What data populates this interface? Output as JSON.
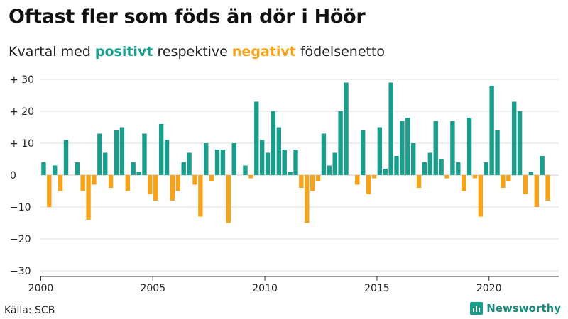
{
  "title": "Oftast fler som föds än dör i Höör",
  "subtitle": {
    "prefix": "Kvartal med ",
    "positive": "positivt",
    "middle": " respektive ",
    "negative": "negativt",
    "suffix": " födelsenetto"
  },
  "source": "Källa: SCB",
  "brand": "Newsworthy",
  "colors": {
    "positive": "#1a9e8b",
    "negative": "#f5a31a",
    "grid": "#dddddd"
  },
  "chart_data": {
    "type": "bar",
    "title": "Oftast fler som föds än dör i Höör",
    "xlabel": "",
    "ylabel": "",
    "ylim": [
      -30,
      30
    ],
    "yticks": [
      30,
      20,
      10,
      0,
      -10,
      -20,
      -30
    ],
    "ytick_labels": [
      "+ 30",
      "+ 20",
      "+ 10",
      "0",
      "−10",
      "−20",
      "−30"
    ],
    "xticks": [
      2000,
      2005,
      2010,
      2015,
      2020
    ],
    "xtick_labels": [
      "2000",
      "2005",
      "2010",
      "2015",
      "2020"
    ],
    "start_year": 2000,
    "periods_per_year": 4,
    "values": [
      4,
      -10,
      3,
      -5,
      11,
      0,
      4,
      -5,
      -14,
      -3,
      13,
      7,
      -4,
      14,
      15,
      -5,
      4,
      1,
      13,
      -6,
      -8,
      16,
      11,
      -8,
      -5,
      4,
      7,
      -3,
      -13,
      10,
      -2,
      8,
      8,
      -15,
      10,
      0,
      3,
      -1,
      23,
      11,
      7,
      20,
      15,
      8,
      1,
      8,
      -4,
      -15,
      -5,
      -2,
      13,
      3,
      7,
      20,
      29,
      0,
      -3,
      14,
      -6,
      -1,
      15,
      2,
      29,
      6,
      17,
      18,
      10,
      -4,
      4,
      7,
      17,
      5,
      -1,
      17,
      4,
      -5,
      18,
      -1,
      -13,
      4,
      28,
      14,
      -4,
      -2,
      23,
      20,
      -6,
      1,
      -10,
      6,
      -8
    ]
  }
}
